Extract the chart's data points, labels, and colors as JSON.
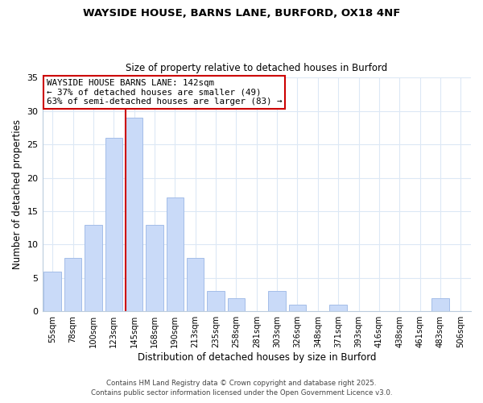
{
  "title1": "WAYSIDE HOUSE, BARNS LANE, BURFORD, OX18 4NF",
  "title2": "Size of property relative to detached houses in Burford",
  "xlabel": "Distribution of detached houses by size in Burford",
  "ylabel": "Number of detached properties",
  "bar_color": "#c9daf8",
  "bar_edge_color": "#a4bde8",
  "categories": [
    "55sqm",
    "78sqm",
    "100sqm",
    "123sqm",
    "145sqm",
    "168sqm",
    "190sqm",
    "213sqm",
    "235sqm",
    "258sqm",
    "281sqm",
    "303sqm",
    "326sqm",
    "348sqm",
    "371sqm",
    "393sqm",
    "416sqm",
    "438sqm",
    "461sqm",
    "483sqm",
    "506sqm"
  ],
  "values": [
    6,
    8,
    13,
    26,
    29,
    13,
    17,
    8,
    3,
    2,
    0,
    3,
    1,
    0,
    1,
    0,
    0,
    0,
    0,
    2,
    0
  ],
  "ylim": [
    0,
    35
  ],
  "yticks": [
    0,
    5,
    10,
    15,
    20,
    25,
    30,
    35
  ],
  "vline_color": "#cc0000",
  "annotation_text": "WAYSIDE HOUSE BARNS LANE: 142sqm\n← 37% of detached houses are smaller (49)\n63% of semi-detached houses are larger (83) →",
  "annotation_box_color": "#ffffff",
  "annotation_box_edge_color": "#cc0000",
  "footer1": "Contains HM Land Registry data © Crown copyright and database right 2025.",
  "footer2": "Contains public sector information licensed under the Open Government Licence v3.0.",
  "background_color": "#ffffff",
  "grid_color": "#dce8f5"
}
